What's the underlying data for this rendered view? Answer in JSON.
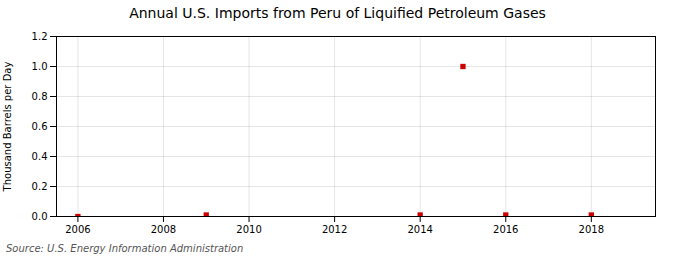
{
  "chart_data": {
    "type": "scatter",
    "title": "Annual U.S. Imports from Peru of Liquified Petroleum Gases",
    "ylabel": "Thousand Barrels per Day",
    "annotations": [
      "Source: U.S. Energy Information Administration"
    ],
    "x": [
      2006,
      2009,
      2014,
      2015,
      2016,
      2018
    ],
    "values": [
      0.0,
      0.01,
      0.01,
      1.0,
      0.01,
      0.01
    ],
    "color": "#cc0000",
    "marker": "square",
    "xlim": [
      2005.5,
      2019.5
    ],
    "xticks": [
      2006,
      2008,
      2010,
      2012,
      2014,
      2016,
      2018
    ],
    "ylim": [
      0.0,
      1.2
    ],
    "yticks": [
      {
        "value": 0,
        "label": "0.0"
      },
      0.2,
      0.4,
      0.6,
      0.8,
      {
        "value": 1,
        "label": "1.0"
      },
      1.2
    ],
    "grid": true
  }
}
